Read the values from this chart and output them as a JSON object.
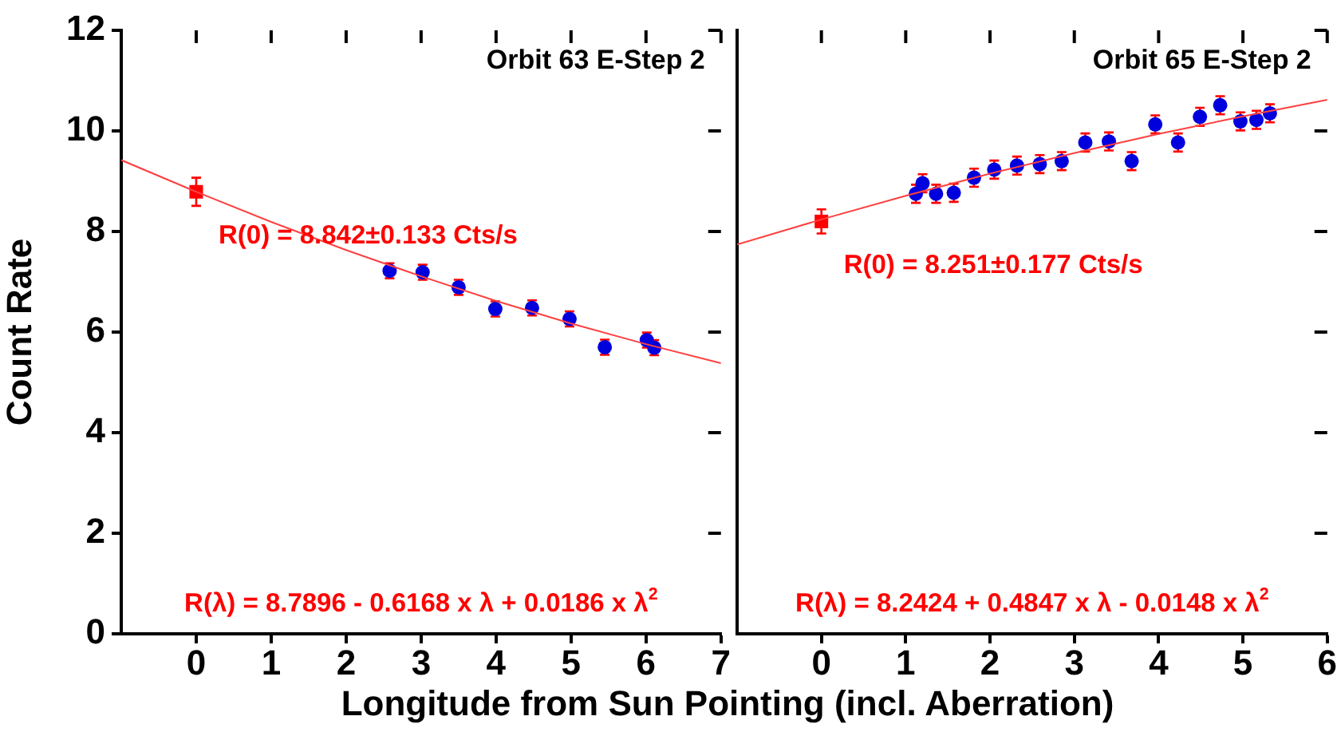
{
  "chart_data": [
    {
      "type": "scatter",
      "title": "Orbit 63 E-Step 2",
      "xlabel": "Longitude from Sun Pointing (incl. Aberration)",
      "ylabel": "Count Rate",
      "xlim": [
        -1,
        7
      ],
      "xticks": [
        0,
        1,
        2,
        3,
        4,
        5,
        6,
        7
      ],
      "ylim": [
        0,
        12
      ],
      "yticks": [
        0,
        2,
        4,
        6,
        8,
        10,
        12
      ],
      "grid": false,
      "legend": false,
      "series": [
        {
          "type": "line",
          "color": "#ff4040",
          "marker": "none",
          "x": [
            -1,
            0,
            1,
            2,
            3,
            4,
            5,
            6,
            7
          ],
          "values": [
            9.42,
            8.79,
            8.19,
            7.63,
            7.11,
            6.62,
            6.17,
            5.76,
            5.38
          ]
        },
        {
          "type": "scatter",
          "color": "#ff0000",
          "marker": "square",
          "x": [
            0
          ],
          "values": [
            8.79
          ],
          "errors": [
            0.28
          ]
        },
        {
          "type": "scatter",
          "color": "#0000dd",
          "marker": "circle",
          "x": [
            2.58,
            3.02,
            3.5,
            3.99,
            4.48,
            4.98,
            5.45,
            6.01,
            6.11
          ],
          "values": [
            7.22,
            7.19,
            6.89,
            6.46,
            6.48,
            6.26,
            5.7,
            5.84,
            5.69
          ],
          "errors": [
            0.15,
            0.15,
            0.15,
            0.15,
            0.15,
            0.15,
            0.15,
            0.15,
            0.15
          ]
        }
      ],
      "annotations": [
        {
          "text": "R(0) = 8.842±0.133 Cts/s",
          "x": 0,
          "y": 8.842
        },
        "R(λ) = 8.7896 - 0.6168 x λ + 0.0186 x λ$^{2}$"
      ]
    },
    {
      "type": "scatter",
      "title": "Orbit 65 E-Step 2",
      "xlim": [
        -1,
        6
      ],
      "xticks": [
        0,
        1,
        2,
        3,
        4,
        5,
        6
      ],
      "ylim": [
        0,
        12
      ],
      "yticks": [
        0,
        2,
        4,
        6,
        8,
        10,
        12
      ],
      "grid": false,
      "legend": false,
      "tick_labels": "x",
      "series": [
        {
          "type": "line",
          "color": "#ff4040",
          "marker": "none",
          "x": [
            -1,
            0,
            1,
            2,
            3,
            4,
            5,
            6
          ],
          "values": [
            7.74,
            8.24,
            8.71,
            9.15,
            9.56,
            9.94,
            10.29,
            10.62
          ]
        },
        {
          "type": "scatter",
          "color": "#ff0000",
          "marker": "square",
          "x": [
            0
          ],
          "values": [
            8.2
          ],
          "errors": [
            0.24
          ]
        },
        {
          "type": "scatter",
          "color": "#0000dd",
          "marker": "circle",
          "x": [
            1.12,
            1.2,
            1.36,
            1.57,
            1.81,
            2.05,
            2.32,
            2.59,
            2.85,
            3.13,
            3.41,
            3.68,
            3.96,
            4.23,
            4.49,
            4.73,
            4.97,
            5.16,
            5.32
          ],
          "values": [
            8.75,
            8.96,
            8.75,
            8.77,
            9.07,
            9.23,
            9.31,
            9.34,
            9.4,
            9.77,
            9.79,
            9.4,
            10.13,
            9.77,
            10.28,
            10.51,
            10.19,
            10.22,
            10.35
          ],
          "errors": [
            0.18,
            0.18,
            0.18,
            0.18,
            0.18,
            0.18,
            0.18,
            0.18,
            0.18,
            0.18,
            0.18,
            0.18,
            0.18,
            0.18,
            0.18,
            0.18,
            0.18,
            0.18,
            0.18
          ]
        }
      ],
      "annotations": [
        {
          "text": "R(0) = 8.251±0.177 Cts/s",
          "x": 0,
          "y": 8.251
        },
        "R(λ) = 8.2424 + 0.4847 x λ - 0.0148 x λ$^{2}$"
      ]
    }
  ]
}
